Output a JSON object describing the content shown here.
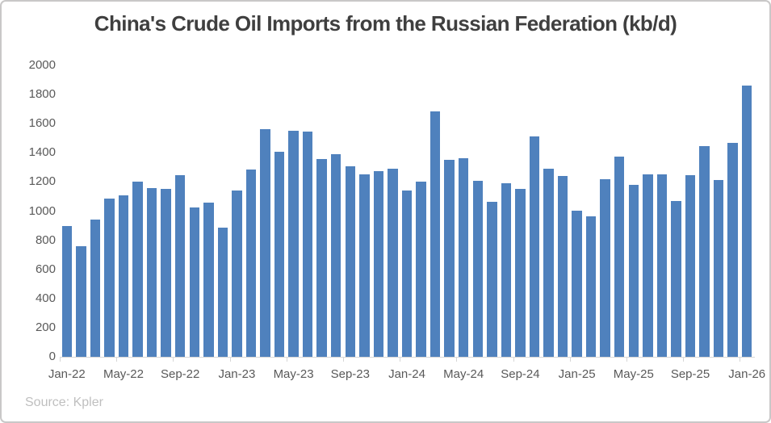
{
  "title": "China's Crude Oil Imports from the Russian Federation (kb/d)",
  "source": "Source: Kpler",
  "colors": {
    "bar": "#4F81BD",
    "axis_line": "#d6d6d6",
    "axis_text": "#595959",
    "title_text": "#3f3f3f",
    "source_text": "#bfbfbf",
    "frame_border": "#c9c8c8",
    "background": "#ffffff"
  },
  "chart_data": {
    "type": "bar",
    "title": "China's Crude Oil Imports from the Russian Federation (kb/d)",
    "source": "Source: Kpler",
    "xlabel": "",
    "ylabel": "",
    "ylim": [
      0,
      2000
    ],
    "grid": false,
    "legend": false,
    "y_ticks": [
      0,
      200,
      400,
      600,
      800,
      1000,
      1200,
      1400,
      1600,
      1800,
      2000
    ],
    "x_tick_labels": [
      "Jan-22",
      "May-22",
      "Sep-22",
      "Jan-23",
      "May-23",
      "Sep-23",
      "Jan-24",
      "May-24",
      "Sep-24",
      "Jan-25",
      "May-25",
      "Sep-25",
      "Jan-26"
    ],
    "x_tick_every": 4,
    "categories": [
      "Jan-22",
      "Feb-22",
      "Mar-22",
      "Apr-22",
      "May-22",
      "Jun-22",
      "Jul-22",
      "Aug-22",
      "Sep-22",
      "Oct-22",
      "Nov-22",
      "Dec-22",
      "Jan-23",
      "Feb-23",
      "Mar-23",
      "Apr-23",
      "May-23",
      "Jun-23",
      "Jul-23",
      "Aug-23",
      "Sep-23",
      "Oct-23",
      "Nov-23",
      "Dec-23",
      "Jan-24",
      "Feb-24",
      "Mar-24",
      "Apr-24",
      "May-24",
      "Jun-24",
      "Jul-24",
      "Aug-24",
      "Sep-24",
      "Oct-24",
      "Nov-24",
      "Dec-24",
      "Jan-25",
      "Feb-25",
      "Mar-25",
      "Apr-25",
      "May-25",
      "Jun-25",
      "Jul-25",
      "Aug-25",
      "Sep-25",
      "Oct-25",
      "Nov-25",
      "Dec-25",
      "Jan-26"
    ],
    "values": [
      900,
      760,
      940,
      1085,
      1110,
      1205,
      1160,
      1150,
      1245,
      1025,
      1060,
      885,
      1140,
      1285,
      1565,
      1410,
      1550,
      1545,
      1360,
      1390,
      1305,
      1250,
      1275,
      1290,
      1140,
      1200,
      1685,
      1350,
      1365,
      1210,
      1065,
      1190,
      1155,
      1510,
      1290,
      1240,
      1005,
      965,
      1220,
      1375,
      1180,
      1250,
      1250,
      1070,
      1245,
      1445,
      1215,
      1470,
      1860
    ]
  }
}
